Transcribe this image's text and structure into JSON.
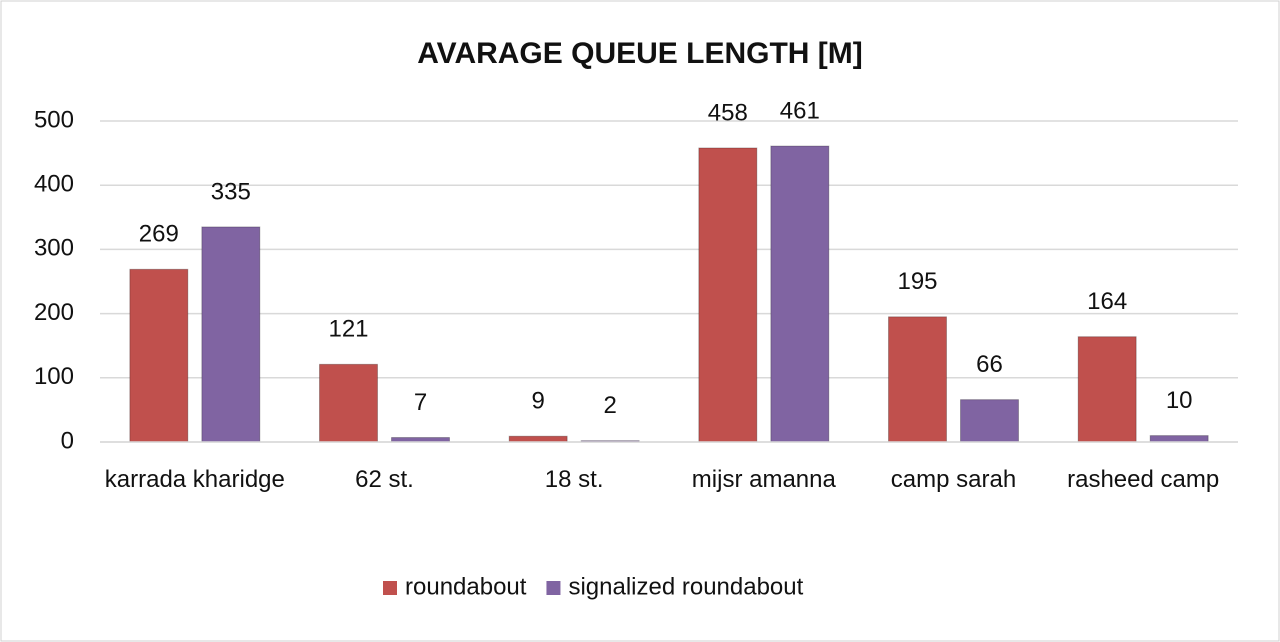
{
  "chart_data": {
    "type": "bar",
    "title": "AVARAGE QUEUE LENGTH [M]",
    "categories": [
      "karrada kharidge",
      "62 st.",
      "18 st.",
      "mijsr amanna",
      "camp sarah",
      "rasheed camp"
    ],
    "series": [
      {
        "name": "roundabout",
        "color": "#c0504d",
        "values": [
          269,
          121,
          9,
          458,
          195,
          164
        ]
      },
      {
        "name": "signalized roundabout",
        "color": "#8064a2",
        "values": [
          335,
          7,
          2,
          461,
          66,
          10
        ]
      }
    ],
    "ylim": [
      0,
      500
    ],
    "yticks": [
      0,
      100,
      200,
      300,
      400,
      500
    ],
    "grid": true,
    "legend": "bottom"
  }
}
